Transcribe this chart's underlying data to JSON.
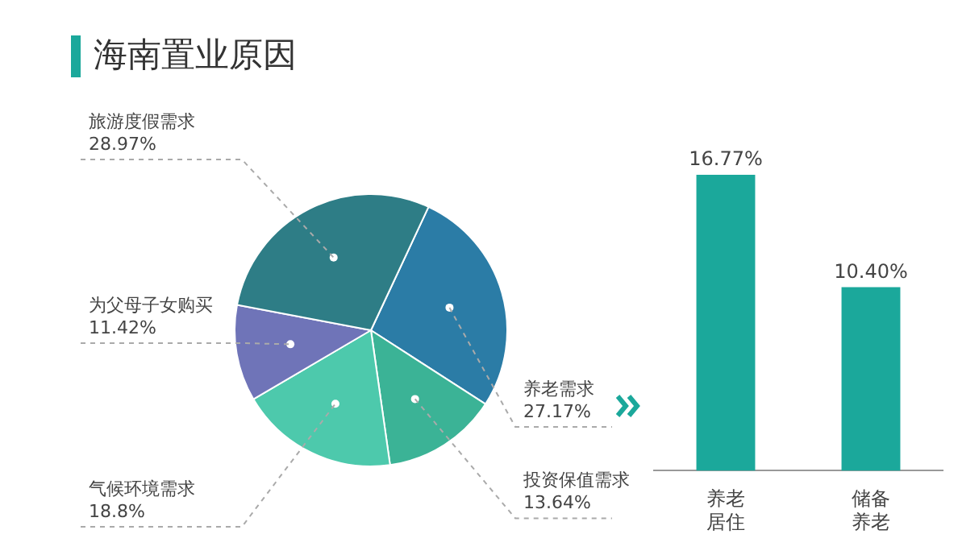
{
  "chart_data": [
    {
      "type": "pie",
      "title": "海南置业原因",
      "categories": [
        "养老需求",
        "投资保值需求",
        "气候环境需求",
        "为父母子女购买",
        "旅游度假需求"
      ],
      "values": [
        27.17,
        13.64,
        18.8,
        11.42,
        28.97
      ],
      "value_labels": [
        "27.17%",
        "13.64%",
        "18.8%",
        "11.42%",
        "28.97%"
      ],
      "colors": [
        "#2b7ca6",
        "#3bb396",
        "#4dc9ac",
        "#6f74b8",
        "#2e7d86"
      ],
      "legend": false
    },
    {
      "type": "bar",
      "categories": [
        "养老居住",
        "储备养老"
      ],
      "values": [
        16.77,
        10.4
      ],
      "value_labels": [
        "16.77%",
        "10.40%"
      ],
      "color": "#1ba89b",
      "legend": false
    }
  ]
}
